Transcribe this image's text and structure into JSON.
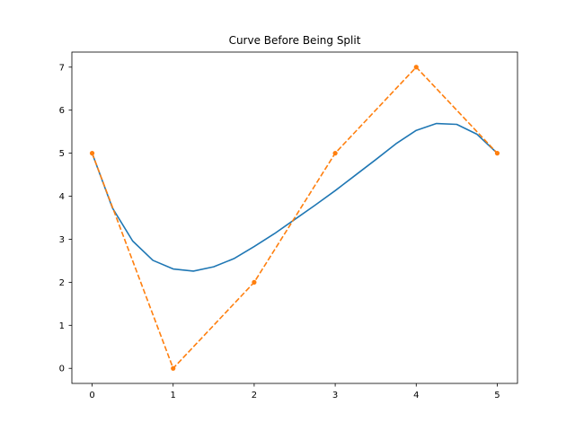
{
  "chart_data": {
    "type": "line",
    "title": "Curve Before Being Split",
    "xlabel": "",
    "ylabel": "",
    "xlim": [
      -0.25,
      5.25
    ],
    "ylim": [
      -0.35,
      7.35
    ],
    "x_ticks": [
      0,
      1,
      2,
      3,
      4,
      5
    ],
    "y_ticks": [
      0,
      1,
      2,
      3,
      4,
      5,
      6,
      7
    ],
    "grid": false,
    "series": [
      {
        "style": "solid",
        "color": "#1f77b4",
        "x": [
          0.0,
          0.25,
          0.5,
          0.75,
          1.0,
          1.25,
          1.5,
          1.75,
          2.0,
          2.25,
          2.5,
          2.75,
          3.0,
          3.25,
          3.5,
          3.75,
          4.0,
          4.25,
          4.5,
          4.75,
          5.0
        ],
        "y": [
          5.0,
          3.73,
          2.96,
          2.51,
          2.31,
          2.26,
          2.36,
          2.55,
          2.83,
          3.13,
          3.46,
          3.79,
          4.13,
          4.49,
          4.85,
          5.22,
          5.53,
          5.69,
          5.67,
          5.44,
          5.0
        ]
      },
      {
        "style": "dashed",
        "marker": "dot",
        "color": "#ff7f0e",
        "x": [
          0,
          1,
          2,
          3,
          4,
          5
        ],
        "y": [
          5,
          0,
          2,
          5,
          7,
          5
        ]
      }
    ]
  }
}
